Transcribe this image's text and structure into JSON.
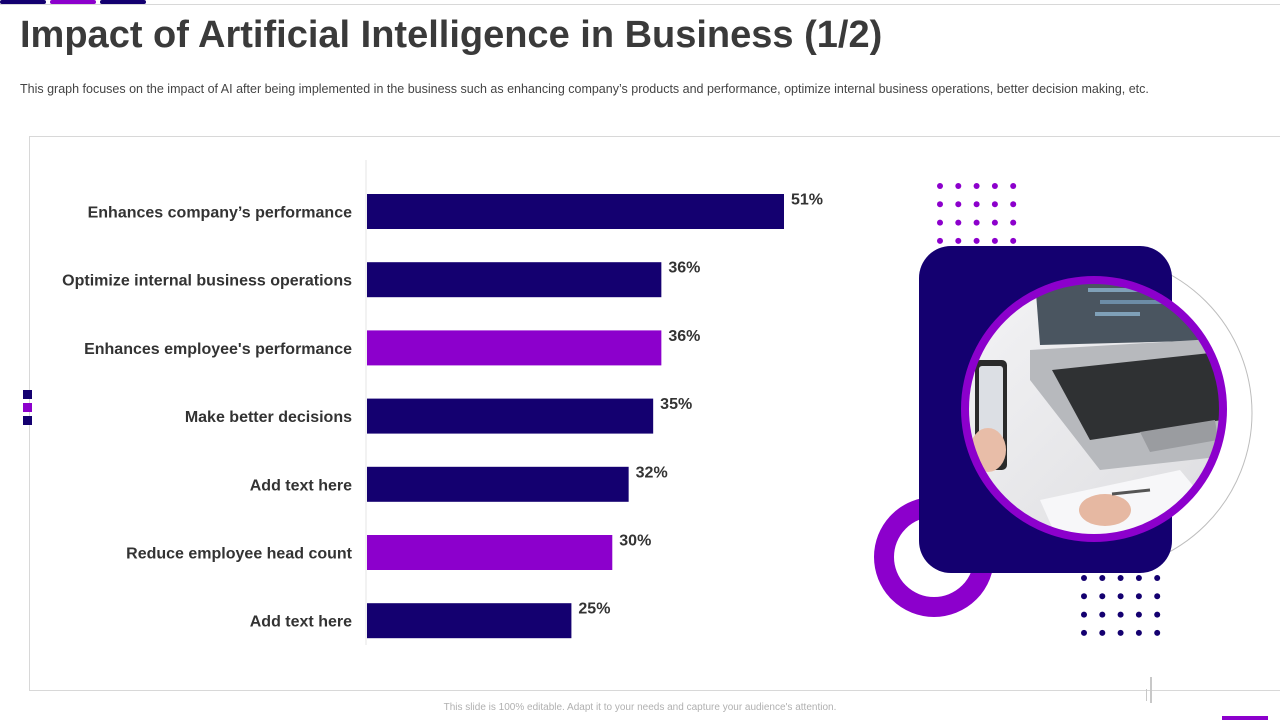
{
  "slide": {
    "title": "Impact of Artificial Intelligence in Business (1/2)",
    "subtitle": "This graph focuses on the impact of AI after being implemented in the business such as enhancing company’s products and performance,  optimize internal business operations, better decision making, etc.",
    "footer": "This slide is 100% editable. Adapt it to your needs and capture your audience's attention."
  },
  "colors": {
    "navy": "#140070",
    "purple": "#8c00cc",
    "accent_purple": "#8e1fd6"
  },
  "chart_data": {
    "type": "bar",
    "orientation": "horizontal",
    "categories": [
      "Enhances company’s performance",
      "Optimize internal business operations",
      "Enhances employee's performance",
      "Make better decisions",
      "Add text here",
      "Reduce employee head count",
      "Add text here"
    ],
    "values": [
      51,
      36,
      36,
      35,
      32,
      30,
      25
    ],
    "value_labels": [
      "51%",
      "36%",
      "36%",
      "35%",
      "32%",
      "30%",
      "25%"
    ],
    "bar_colors": [
      "#140070",
      "#140070",
      "#8c00cc",
      "#140070",
      "#140070",
      "#8c00cc",
      "#140070"
    ],
    "unit": "%",
    "xlim": [
      0,
      60
    ],
    "grid": false,
    "legend": "none"
  },
  "image": {
    "icon": "laptop-photo-icon"
  }
}
